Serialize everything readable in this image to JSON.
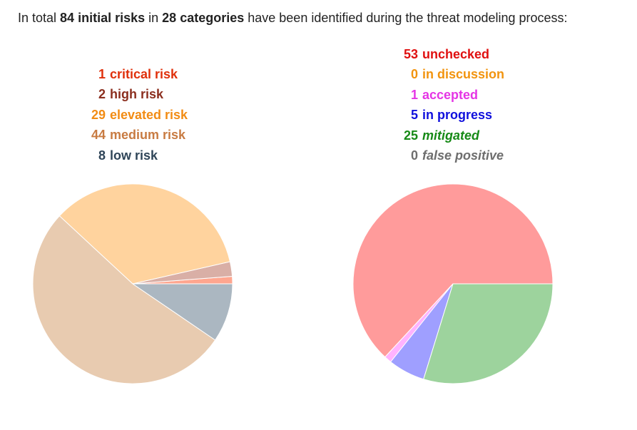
{
  "header": {
    "prefix": "In total ",
    "risks_count": "84",
    "risks_label": "initial risks",
    "middle": " in ",
    "categories_count": "28",
    "categories_label": "categories",
    "suffix": " have been identified during the threat modeling process:"
  },
  "chart_data": [
    {
      "type": "pie",
      "name": "severity",
      "slices": [
        {
          "label": "critical risk",
          "value": 1,
          "text_color": "#e0300b",
          "fill": "#ffa68f"
        },
        {
          "label": "high risk",
          "value": 2,
          "text_color": "#8b2e1e",
          "fill": "#d9afa6"
        },
        {
          "label": "elevated risk",
          "value": 29,
          "text_color": "#f28c14",
          "fill": "#ffd39e"
        },
        {
          "label": "medium risk",
          "value": 44,
          "text_color": "#c87b42",
          "fill": "#e8cbb0"
        },
        {
          "label": "low risk",
          "value": 8,
          "text_color": "#2f4558",
          "fill": "#abb7c1"
        }
      ]
    },
    {
      "type": "pie",
      "name": "status",
      "slices": [
        {
          "label": "unchecked",
          "value": 53,
          "text_color": "#e01010",
          "fill": "#ff9b9b",
          "italic": false
        },
        {
          "label": "in discussion",
          "value": 0,
          "text_color": "#f2940f",
          "fill": "#ffd39e",
          "italic": false
        },
        {
          "label": "accepted",
          "value": 1,
          "text_color": "#e535e5",
          "fill": "#ffb3ff",
          "italic": false
        },
        {
          "label": "in progress",
          "value": 5,
          "text_color": "#1010dd",
          "fill": "#9f9fff",
          "italic": false
        },
        {
          "label": "mitigated",
          "value": 25,
          "text_color": "#178a17",
          "fill": "#9dd39d",
          "italic": true
        },
        {
          "label": "false positive",
          "value": 0,
          "text_color": "#6e6e6e",
          "fill": "#cccccc",
          "italic": true
        }
      ]
    }
  ]
}
